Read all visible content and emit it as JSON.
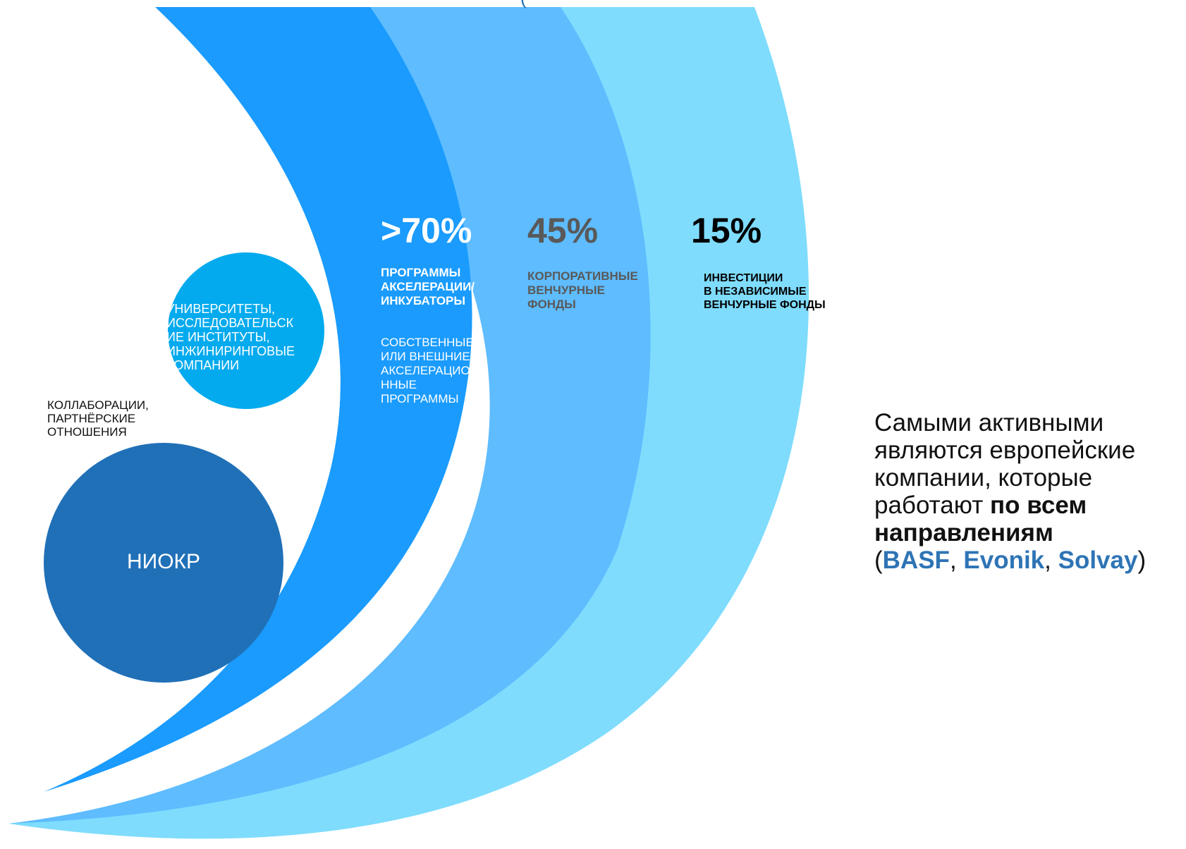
{
  "colors": {
    "band_outer": "#7fdcfd",
    "band_middle": "#5ebcff",
    "band_inner": "#1a9bfd",
    "universities_circle": "#04aaee",
    "rnd_circle": "#2070b8",
    "gray_text": "#595959",
    "brand_blue": "#2e74b5"
  },
  "top_partial_text": "(",
  "rnd": {
    "label": "НИОКР"
  },
  "collaborations": {
    "label_lines": [
      "КОЛЛАБОРАЦИИ,",
      "ПАРТНЁРСКИЕ",
      "ОТНОШЕНИЯ"
    ]
  },
  "universities": {
    "label_lines": [
      "УНИВЕРСИТЕТЫ,",
      "ИССЛЕДОВАТЕЛЬСК",
      "ИЕ ИНСТИТУТЫ,",
      "ИНЖИНИРИНГОВЫЕ",
      "КОМПАНИИ"
    ]
  },
  "acceleration": {
    "value": ">70%",
    "caption_lines": [
      "ПРОГРАММЫ",
      "АКСЕЛЕРАЦИИ/",
      "ИНКУБАТОРЫ"
    ],
    "sub_lines": [
      "СОБСТВЕННЫЕ",
      "ИЛИ ВНЕШНИЕ",
      "АКСЕЛЕРАЦИО",
      "ННЫЕ",
      "ПРОГРАММЫ"
    ]
  },
  "corporate_vc": {
    "value": "45%",
    "caption_lines": [
      "КОРПОРАТИВНЫЕ",
      "ВЕНЧУРНЫЕ",
      "ФОНДЫ"
    ]
  },
  "independent_vc": {
    "value": "15%",
    "caption_lines": [
      "ИНВЕСТИЦИИ",
      "В НЕЗАВИСИМЫЕ",
      "ВЕНЧУРНЫЕ ФОНДЫ"
    ]
  },
  "summary": {
    "line1": "Самыми активными",
    "line2": "являются европейские",
    "line3": "компании, которые",
    "line4_plain": "работают ",
    "line4_bold": "по всем",
    "line5_bold": "направлениям",
    "open_paren": "(",
    "brand1": "BASF",
    "sep1": ", ",
    "brand2": "Evonik",
    "sep2": ", ",
    "brand3": "Solvay",
    "close_paren": ")"
  }
}
